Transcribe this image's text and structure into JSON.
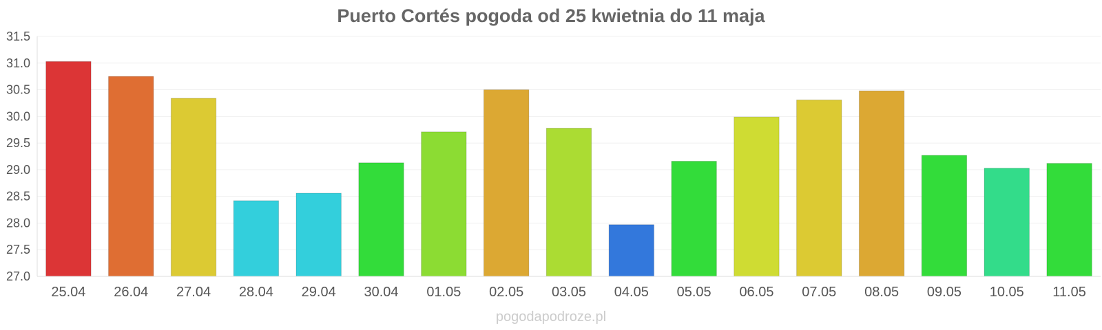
{
  "chart_data": {
    "type": "bar",
    "title": "Puerto Cortés pogoda od 25 kwietnia do 11 maja",
    "xlabel": "",
    "ylabel": "",
    "ylim": [
      27.0,
      31.5
    ],
    "yticks": [
      "27.0",
      "27.5",
      "28.0",
      "28.5",
      "29.0",
      "29.5",
      "30.0",
      "30.5",
      "31.0",
      "31.5"
    ],
    "grid": true,
    "legend": "none",
    "categories": [
      "25.04",
      "26.04",
      "27.04",
      "28.04",
      "29.04",
      "30.04",
      "01.05",
      "02.05",
      "03.05",
      "04.05",
      "05.05",
      "06.05",
      "07.05",
      "08.05",
      "09.05",
      "10.05",
      "11.05"
    ],
    "values": [
      31.03,
      30.75,
      30.34,
      28.42,
      28.56,
      29.13,
      29.71,
      30.5,
      29.78,
      27.97,
      29.16,
      29.99,
      30.31,
      30.48,
      29.27,
      29.03,
      29.12
    ],
    "colors": [
      "#dc3536",
      "#df6e33",
      "#dcca33",
      "#33cfdc",
      "#33cfdc",
      "#33dc3a",
      "#8cdc33",
      "#dca833",
      "#abdc33",
      "#3378dc",
      "#33dc3a",
      "#cfdc33",
      "#dcca33",
      "#dca833",
      "#33dc3a",
      "#33dc8a",
      "#33dc3a"
    ]
  },
  "watermark": "pogodapodroze.pl"
}
